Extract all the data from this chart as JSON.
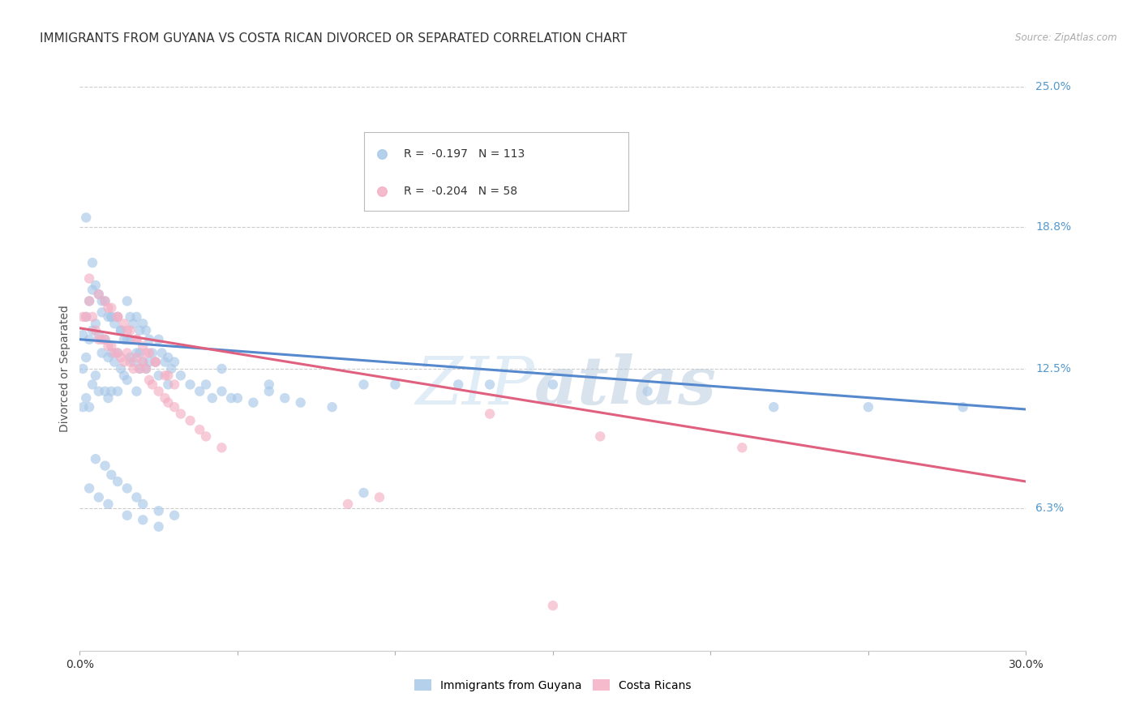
{
  "title": "IMMIGRANTS FROM GUYANA VS COSTA RICAN DIVORCED OR SEPARATED CORRELATION CHART",
  "source": "Source: ZipAtlas.com",
  "ylabel": "Divorced or Separated",
  "xlim": [
    0.0,
    0.3
  ],
  "ylim": [
    0.0,
    0.25
  ],
  "ytick_labels_right": [
    "25.0%",
    "18.8%",
    "12.5%",
    "6.3%"
  ],
  "ytick_positions_right": [
    0.25,
    0.188,
    0.125,
    0.063
  ],
  "color_blue": "#a8c8e8",
  "color_pink": "#f4afc4",
  "line_color_blue": "#5588cc",
  "line_color_pink": "#e06080",
  "legend_label1": "Immigrants from Guyana",
  "legend_label2": "Costa Ricans",
  "blue_line_y_start": 0.138,
  "blue_line_y_end": 0.107,
  "pink_line_y_start": 0.143,
  "pink_line_y_end": 0.075,
  "marker_size": 80,
  "marker_alpha": 0.65,
  "grid_color": "#cccccc",
  "background_color": "#ffffff",
  "title_fontsize": 11,
  "right_label_color": "#5599cc",
  "blue_scatter_x": [
    0.001,
    0.001,
    0.001,
    0.002,
    0.002,
    0.002,
    0.003,
    0.003,
    0.003,
    0.004,
    0.004,
    0.004,
    0.005,
    0.005,
    0.005,
    0.006,
    0.006,
    0.006,
    0.007,
    0.007,
    0.008,
    0.008,
    0.008,
    0.009,
    0.009,
    0.009,
    0.01,
    0.01,
    0.01,
    0.011,
    0.011,
    0.012,
    0.012,
    0.012,
    0.013,
    0.013,
    0.014,
    0.014,
    0.015,
    0.015,
    0.015,
    0.016,
    0.016,
    0.017,
    0.017,
    0.018,
    0.018,
    0.018,
    0.019,
    0.019,
    0.02,
    0.02,
    0.021,
    0.021,
    0.022,
    0.023,
    0.024,
    0.025,
    0.026,
    0.027,
    0.028,
    0.029,
    0.03,
    0.032,
    0.035,
    0.038,
    0.04,
    0.042,
    0.045,
    0.048,
    0.05,
    0.055,
    0.06,
    0.065,
    0.07,
    0.08,
    0.09,
    0.1,
    0.12,
    0.13,
    0.15,
    0.18,
    0.22,
    0.25,
    0.28,
    0.005,
    0.008,
    0.01,
    0.012,
    0.015,
    0.018,
    0.02,
    0.025,
    0.03,
    0.003,
    0.006,
    0.009,
    0.015,
    0.02,
    0.025,
    0.002,
    0.004,
    0.007,
    0.01,
    0.013,
    0.016,
    0.019,
    0.022,
    0.025,
    0.028,
    0.06,
    0.045,
    0.09
  ],
  "blue_scatter_y": [
    0.14,
    0.125,
    0.108,
    0.148,
    0.13,
    0.112,
    0.155,
    0.138,
    0.108,
    0.16,
    0.142,
    0.118,
    0.162,
    0.145,
    0.122,
    0.158,
    0.14,
    0.115,
    0.15,
    0.132,
    0.155,
    0.138,
    0.115,
    0.148,
    0.13,
    0.112,
    0.148,
    0.132,
    0.115,
    0.145,
    0.128,
    0.148,
    0.132,
    0.115,
    0.142,
    0.125,
    0.138,
    0.122,
    0.155,
    0.138,
    0.12,
    0.148,
    0.13,
    0.145,
    0.128,
    0.148,
    0.132,
    0.115,
    0.142,
    0.125,
    0.145,
    0.128,
    0.142,
    0.125,
    0.138,
    0.132,
    0.128,
    0.138,
    0.132,
    0.128,
    0.13,
    0.125,
    0.128,
    0.122,
    0.118,
    0.115,
    0.118,
    0.112,
    0.115,
    0.112,
    0.112,
    0.11,
    0.115,
    0.112,
    0.11,
    0.108,
    0.118,
    0.118,
    0.118,
    0.118,
    0.118,
    0.115,
    0.108,
    0.108,
    0.108,
    0.085,
    0.082,
    0.078,
    0.075,
    0.072,
    0.068,
    0.065,
    0.062,
    0.06,
    0.072,
    0.068,
    0.065,
    0.06,
    0.058,
    0.055,
    0.192,
    0.172,
    0.155,
    0.148,
    0.142,
    0.138,
    0.132,
    0.128,
    0.122,
    0.118,
    0.118,
    0.125,
    0.07
  ],
  "pink_scatter_x": [
    0.001,
    0.002,
    0.003,
    0.004,
    0.005,
    0.006,
    0.007,
    0.008,
    0.009,
    0.01,
    0.011,
    0.012,
    0.013,
    0.014,
    0.015,
    0.016,
    0.017,
    0.018,
    0.019,
    0.02,
    0.021,
    0.022,
    0.023,
    0.025,
    0.027,
    0.028,
    0.03,
    0.032,
    0.035,
    0.038,
    0.04,
    0.045,
    0.008,
    0.01,
    0.012,
    0.014,
    0.016,
    0.018,
    0.02,
    0.022,
    0.024,
    0.027,
    0.03,
    0.003,
    0.006,
    0.009,
    0.012,
    0.015,
    0.018,
    0.021,
    0.024,
    0.028,
    0.13,
    0.165,
    0.21,
    0.095,
    0.085,
    0.15
  ],
  "pink_scatter_y": [
    0.148,
    0.148,
    0.155,
    0.148,
    0.142,
    0.138,
    0.138,
    0.138,
    0.135,
    0.135,
    0.132,
    0.132,
    0.13,
    0.128,
    0.132,
    0.128,
    0.125,
    0.13,
    0.125,
    0.128,
    0.125,
    0.12,
    0.118,
    0.115,
    0.112,
    0.11,
    0.108,
    0.105,
    0.102,
    0.098,
    0.095,
    0.09,
    0.155,
    0.152,
    0.148,
    0.145,
    0.142,
    0.138,
    0.135,
    0.132,
    0.128,
    0.122,
    0.118,
    0.165,
    0.158,
    0.152,
    0.148,
    0.142,
    0.138,
    0.132,
    0.128,
    0.122,
    0.105,
    0.095,
    0.09,
    0.068,
    0.065,
    0.02
  ]
}
